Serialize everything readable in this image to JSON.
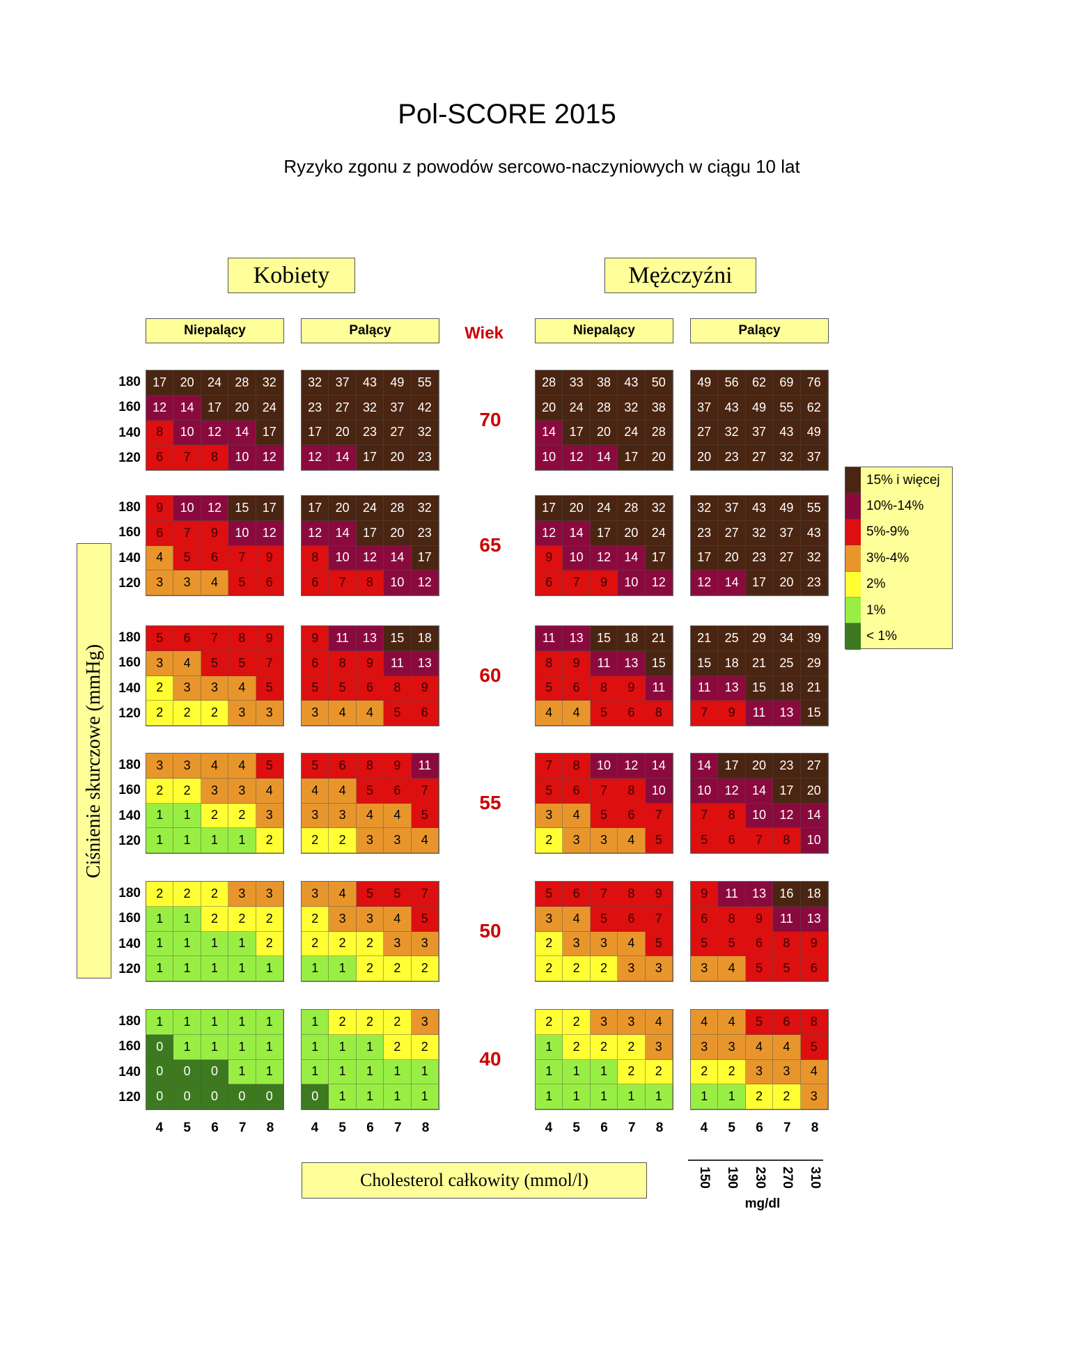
{
  "header": {
    "title": "Pol-SCORE 2015",
    "subtitle": "Ryzyko zgonu z powodów sercowo-naczyniowych w ciągu 10 lat"
  },
  "groups": {
    "women": "Kobiety",
    "men": "Mężczyźni",
    "nonsmoker": "Niepalący",
    "smoker": "Palący",
    "age_header": "Wiek"
  },
  "axes": {
    "ylabel": "Ciśnienie skurczowe (mmHg)",
    "xlabel": "Cholesterol całkowity (mmol/l)",
    "mg_unit": "mg/dl",
    "sbp_levels": [
      "180",
      "160",
      "140",
      "120"
    ],
    "chol_mmol": [
      "4",
      "5",
      "6",
      "7",
      "8"
    ],
    "chol_mgdl": [
      "150",
      "190",
      "230",
      "270",
      "310"
    ]
  },
  "legend": [
    {
      "label": "15% i więcej",
      "color": "#4a2512"
    },
    {
      "label": "10%-14%",
      "color": "#8b0a3e"
    },
    {
      "label": "5%-9%",
      "color": "#dd0f0f"
    },
    {
      "label": "3%-4%",
      "color": "#e8962c"
    },
    {
      "label": "2%",
      "color": "#ffff33"
    },
    {
      "label": "1%",
      "color": "#99ee44"
    },
    {
      "label": "< 1%",
      "color": "#3d7a1f"
    }
  ],
  "chart_data": {
    "type": "heatmap",
    "title": "Pol-SCORE 2015",
    "subtitle": "Ryzyko zgonu z powodów sercowo-naczyniowych w ciągu 10 lat",
    "xlabel": "Cholesterol całkowity (mmol/l)",
    "ylabel": "Ciśnienie skurczowe (mmHg)",
    "ages": [
      "70",
      "65",
      "60",
      "55",
      "50",
      "40"
    ],
    "panels": [
      {
        "sex": "Kobiety",
        "smoking": "Niepalący",
        "grids": [
          [
            [
              17,
              20,
              24,
              28,
              32
            ],
            [
              12,
              14,
              17,
              20,
              24
            ],
            [
              8,
              10,
              12,
              14,
              17
            ],
            [
              6,
              7,
              8,
              10,
              12
            ]
          ],
          [
            [
              9,
              10,
              12,
              15,
              17
            ],
            [
              6,
              7,
              9,
              10,
              12
            ],
            [
              4,
              5,
              6,
              7,
              9
            ],
            [
              3,
              3,
              4,
              5,
              6
            ]
          ],
          [
            [
              5,
              6,
              7,
              8,
              9
            ],
            [
              3,
              4,
              5,
              5,
              7
            ],
            [
              2,
              3,
              3,
              4,
              5
            ],
            [
              2,
              2,
              2,
              3,
              3
            ]
          ],
          [
            [
              3,
              3,
              4,
              4,
              5
            ],
            [
              2,
              2,
              3,
              3,
              4
            ],
            [
              1,
              1,
              2,
              2,
              3
            ],
            [
              1,
              1,
              1,
              1,
              2
            ]
          ],
          [
            [
              2,
              2,
              2,
              3,
              3
            ],
            [
              1,
              1,
              2,
              2,
              2
            ],
            [
              1,
              1,
              1,
              1,
              2
            ],
            [
              1,
              1,
              1,
              1,
              1
            ]
          ],
          [
            [
              1,
              1,
              1,
              1,
              1
            ],
            [
              0,
              1,
              1,
              1,
              1
            ],
            [
              0,
              0,
              0,
              1,
              1
            ],
            [
              0,
              0,
              0,
              0,
              0
            ]
          ]
        ]
      },
      {
        "sex": "Kobiety",
        "smoking": "Palący",
        "grids": [
          [
            [
              32,
              37,
              43,
              49,
              55
            ],
            [
              23,
              27,
              32,
              37,
              42
            ],
            [
              17,
              20,
              23,
              27,
              32
            ],
            [
              12,
              14,
              17,
              20,
              23
            ]
          ],
          [
            [
              17,
              20,
              24,
              28,
              32
            ],
            [
              12,
              14,
              17,
              20,
              23
            ],
            [
              8,
              10,
              12,
              14,
              17
            ],
            [
              6,
              7,
              8,
              10,
              12
            ]
          ],
          [
            [
              9,
              11,
              13,
              15,
              18
            ],
            [
              6,
              8,
              9,
              11,
              13
            ],
            [
              5,
              5,
              6,
              8,
              9
            ],
            [
              3,
              4,
              4,
              5,
              6
            ]
          ],
          [
            [
              5,
              6,
              8,
              9,
              11
            ],
            [
              4,
              4,
              5,
              6,
              7
            ],
            [
              3,
              3,
              4,
              4,
              5
            ],
            [
              2,
              2,
              3,
              3,
              4
            ]
          ],
          [
            [
              3,
              4,
              5,
              5,
              7
            ],
            [
              2,
              3,
              3,
              4,
              5
            ],
            [
              2,
              2,
              2,
              3,
              3
            ],
            [
              1,
              1,
              2,
              2,
              2
            ]
          ],
          [
            [
              1,
              2,
              2,
              2,
              3
            ],
            [
              1,
              1,
              1,
              2,
              2
            ],
            [
              1,
              1,
              1,
              1,
              1
            ],
            [
              0,
              1,
              1,
              1,
              1
            ]
          ]
        ]
      },
      {
        "sex": "Mężczyźni",
        "smoking": "Niepalący",
        "grids": [
          [
            [
              28,
              33,
              38,
              43,
              50
            ],
            [
              20,
              24,
              28,
              32,
              38
            ],
            [
              14,
              17,
              20,
              24,
              28
            ],
            [
              10,
              12,
              14,
              17,
              20
            ]
          ],
          [
            [
              17,
              20,
              24,
              28,
              32
            ],
            [
              12,
              14,
              17,
              20,
              24
            ],
            [
              9,
              10,
              12,
              14,
              17
            ],
            [
              6,
              7,
              9,
              10,
              12
            ]
          ],
          [
            [
              11,
              13,
              15,
              18,
              21
            ],
            [
              8,
              9,
              11,
              13,
              15
            ],
            [
              5,
              6,
              8,
              9,
              11
            ],
            [
              4,
              4,
              5,
              6,
              8
            ]
          ],
          [
            [
              7,
              8,
              10,
              12,
              14
            ],
            [
              5,
              6,
              7,
              8,
              10
            ],
            [
              3,
              4,
              5,
              6,
              7
            ],
            [
              2,
              3,
              3,
              4,
              5
            ]
          ],
          [
            [
              5,
              6,
              7,
              8,
              9
            ],
            [
              3,
              4,
              5,
              6,
              7
            ],
            [
              2,
              3,
              3,
              4,
              5
            ],
            [
              2,
              2,
              2,
              3,
              3
            ]
          ],
          [
            [
              2,
              2,
              3,
              3,
              4
            ],
            [
              1,
              2,
              2,
              2,
              3
            ],
            [
              1,
              1,
              1,
              2,
              2
            ],
            [
              1,
              1,
              1,
              1,
              1
            ]
          ]
        ]
      },
      {
        "sex": "Mężczyźni",
        "smoking": "Palący",
        "grids": [
          [
            [
              49,
              56,
              62,
              69,
              76
            ],
            [
              37,
              43,
              49,
              55,
              62
            ],
            [
              27,
              32,
              37,
              43,
              49
            ],
            [
              20,
              23,
              27,
              32,
              37
            ]
          ],
          [
            [
              32,
              37,
              43,
              49,
              55
            ],
            [
              23,
              27,
              32,
              37,
              43
            ],
            [
              17,
              20,
              23,
              27,
              32
            ],
            [
              12,
              14,
              17,
              20,
              23
            ]
          ],
          [
            [
              21,
              25,
              29,
              34,
              39
            ],
            [
              15,
              18,
              21,
              25,
              29
            ],
            [
              11,
              13,
              15,
              18,
              21
            ],
            [
              7,
              9,
              11,
              13,
              15
            ]
          ],
          [
            [
              14,
              17,
              20,
              23,
              27
            ],
            [
              10,
              12,
              14,
              17,
              20
            ],
            [
              7,
              8,
              10,
              12,
              14
            ],
            [
              5,
              6,
              7,
              8,
              10
            ]
          ],
          [
            [
              9,
              11,
              13,
              16,
              18
            ],
            [
              6,
              8,
              9,
              11,
              13
            ],
            [
              5,
              5,
              6,
              8,
              9
            ],
            [
              3,
              4,
              5,
              5,
              6
            ]
          ],
          [
            [
              4,
              4,
              5,
              6,
              8
            ],
            [
              3,
              3,
              4,
              4,
              5
            ],
            [
              2,
              2,
              3,
              3,
              4
            ],
            [
              1,
              1,
              2,
              2,
              3
            ]
          ]
        ]
      }
    ]
  }
}
